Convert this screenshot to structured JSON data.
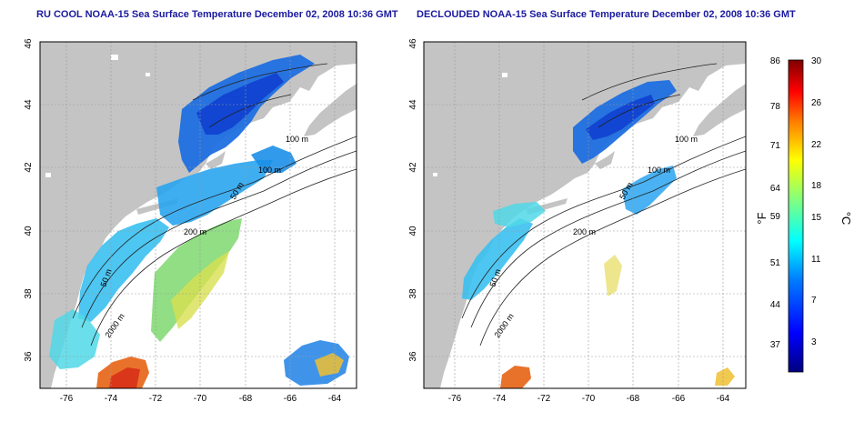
{
  "panels": [
    {
      "title": "RU COOL NOAA-15 Sea Surface Temperature December 02, 2008 10:36 GMT",
      "contour_labels": [
        "100 m",
        "100 m",
        "50 m",
        "200 m",
        "50 m",
        "2000 m"
      ]
    },
    {
      "title": "DECLOUDED NOAA-15 Sea Surface Temperature December 02, 2008 10:36 GMT",
      "contour_labels": [
        "100 m",
        "100 m",
        "50 m",
        "200 m",
        "50 m",
        "2000 m"
      ]
    }
  ],
  "axes": {
    "x_ticks": [
      "-76",
      "-74",
      "-72",
      "-70",
      "-68",
      "-66",
      "-64"
    ],
    "y_ticks": [
      "36",
      "38",
      "40",
      "42",
      "44",
      "46"
    ],
    "lon_range": [
      -77.3,
      -63
    ],
    "lat_range": [
      35,
      46
    ]
  },
  "colorbar": {
    "unit_f": "°F",
    "unit_c": "°C",
    "f_ticks": [
      "86",
      "78",
      "71",
      "64",
      "59",
      "51",
      "44",
      "37"
    ],
    "c_ticks": [
      "30",
      "26",
      "22",
      "18",
      "15",
      "11",
      "7",
      "3"
    ],
    "colors": [
      "#00007f",
      "#0000ff",
      "#0080ff",
      "#00ffff",
      "#80ff80",
      "#ffff00",
      "#ff8000",
      "#ff0000",
      "#7f0000"
    ]
  },
  "colors": {
    "land": "#c4c4c4",
    "title": "#1a1aa0"
  }
}
